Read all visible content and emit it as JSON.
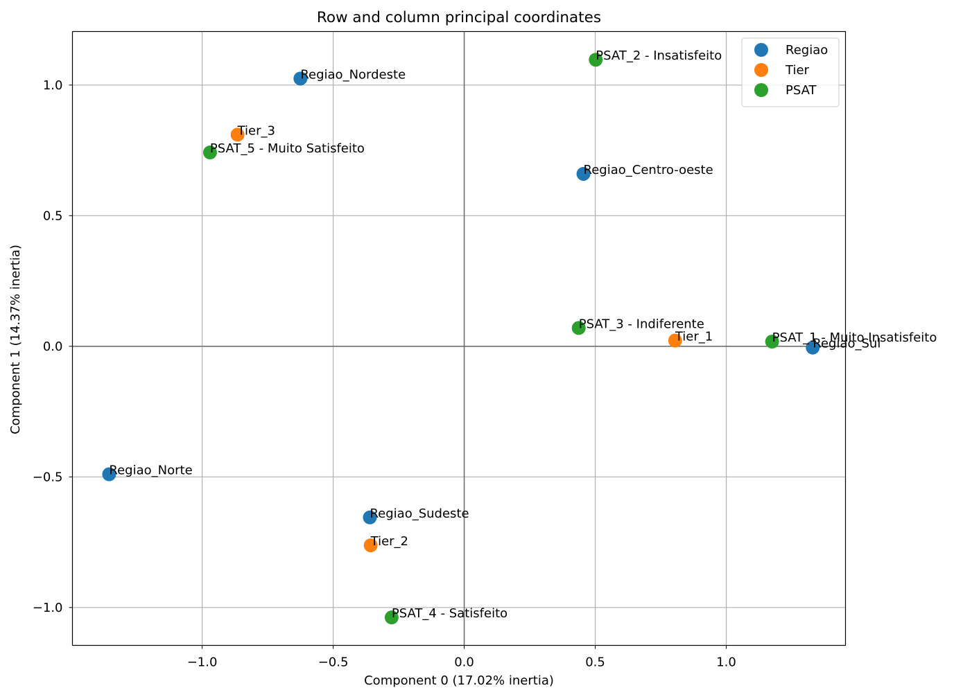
{
  "chart_data": {
    "type": "scatter",
    "title": "Row and column principal coordinates",
    "xlabel": "Component 0 (17.02% inertia)",
    "ylabel": "Component 1 (14.37% inertia)",
    "xlim": [
      -1.495,
      1.455
    ],
    "ylim": [
      -1.145,
      1.205
    ],
    "xticks": [
      -1.0,
      -0.5,
      0.0,
      0.5,
      1.0
    ],
    "xtick_labels": [
      "−1.0",
      "−0.5",
      "0.0",
      "0.5",
      "1.0"
    ],
    "yticks": [
      -1.0,
      -0.5,
      0.0,
      0.5,
      1.0
    ],
    "ytick_labels": [
      "−1.0",
      "−0.5",
      "0.0",
      "0.5",
      "1.0"
    ],
    "grid": true,
    "legend_position": "top-right",
    "series": [
      {
        "name": "Regiao",
        "color": "#1f77b4",
        "points": [
          {
            "label": "Regiao_Nordeste",
            "x": -0.625,
            "y": 1.025
          },
          {
            "label": "Regiao_Centro-oeste",
            "x": 0.455,
            "y": 0.66
          },
          {
            "label": "Regiao_Sul",
            "x": 1.33,
            "y": -0.005
          },
          {
            "label": "Regiao_Norte",
            "x": -1.355,
            "y": -0.49
          },
          {
            "label": "Regiao_Sudeste",
            "x": -0.36,
            "y": -0.655
          }
        ]
      },
      {
        "name": "Tier",
        "color": "#ff7f0e",
        "points": [
          {
            "label": "Tier_3",
            "x": -0.865,
            "y": 0.81
          },
          {
            "label": "Tier_1",
            "x": 0.805,
            "y": 0.022
          },
          {
            "label": "Tier_2",
            "x": -0.357,
            "y": -0.762
          }
        ]
      },
      {
        "name": "PSAT",
        "color": "#2ca02c",
        "points": [
          {
            "label": "PSAT_2 - Insatisfeito",
            "x": 0.502,
            "y": 1.097
          },
          {
            "label": "PSAT_5 - Muito Satisfeito",
            "x": -0.97,
            "y": 0.742
          },
          {
            "label": "PSAT_3 - Indiferente",
            "x": 0.437,
            "y": 0.07
          },
          {
            "label": "PSAT_1 - Muito Insatisfeito",
            "x": 1.175,
            "y": 0.018
          },
          {
            "label": "PSAT_4 - Satisfeito",
            "x": -0.277,
            "y": -1.038
          }
        ]
      }
    ]
  }
}
